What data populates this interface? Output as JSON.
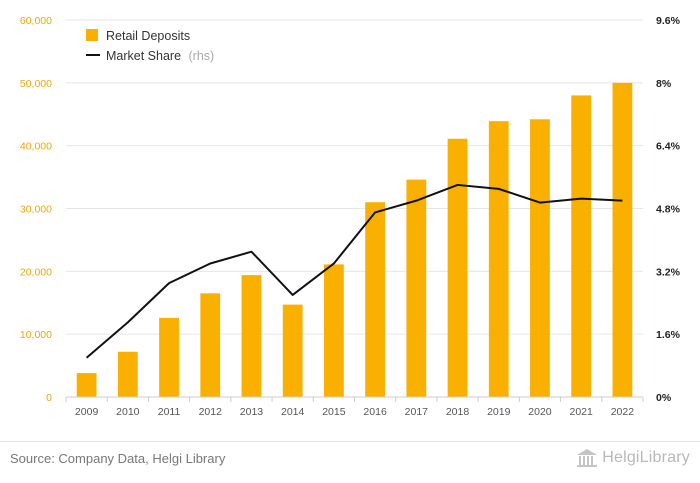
{
  "chart_data": {
    "type": "bar+line",
    "categories": [
      "2009",
      "2010",
      "2011",
      "2012",
      "2013",
      "2014",
      "2015",
      "2016",
      "2017",
      "2018",
      "2019",
      "2020",
      "2021",
      "2022"
    ],
    "series": [
      {
        "name": "Retail Deposits",
        "type": "bar",
        "axis": "left",
        "color": "#f9b000",
        "values": [
          3800,
          7200,
          12600,
          16500,
          19400,
          14700,
          21100,
          31000,
          34600,
          41100,
          43900,
          44200,
          48000,
          50000
        ]
      },
      {
        "name": "Market Share",
        "name_suffix": "(rhs)",
        "type": "line",
        "axis": "right",
        "color": "#111111",
        "values": [
          1.0,
          1.9,
          2.9,
          3.4,
          3.7,
          2.6,
          3.4,
          4.7,
          5.0,
          5.4,
          5.3,
          4.95,
          5.05,
          5.0
        ]
      }
    ],
    "yleft": {
      "min": 0,
      "max": 60000,
      "ticks": [
        "0",
        "10,000",
        "20,000",
        "30,000",
        "40,000",
        "50,000",
        "60,000"
      ]
    },
    "yright": {
      "min": 0,
      "max": 9.6,
      "ticks": [
        "0%",
        "1.6%",
        "3.2%",
        "4.8%",
        "6.4%",
        "8%",
        "9.6%"
      ]
    },
    "grid": true,
    "legend_position": "top-left"
  },
  "footer": {
    "source": "Source: Company Data, Helgi Library",
    "logo_text": "HelgiLibrary"
  }
}
